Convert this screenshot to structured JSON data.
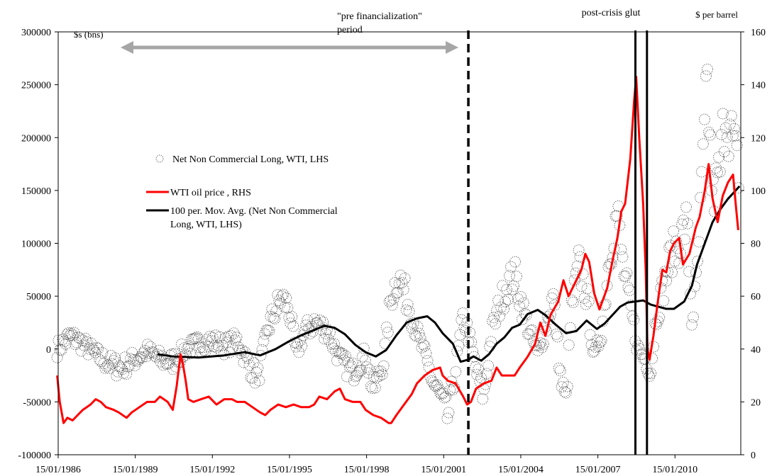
{
  "chart_data": {
    "type": "line",
    "title": "",
    "left_axis": {
      "unit": "$s (bns)",
      "range": [
        -100000,
        300000
      ],
      "ticks": [
        -100000,
        -50000,
        0,
        50000,
        100000,
        150000,
        200000,
        250000,
        300000
      ],
      "tick_labels": [
        "-100000",
        "-50000",
        "0",
        "50000",
        "100000",
        "150000",
        "200000",
        "250000",
        "300000"
      ]
    },
    "right_axis": {
      "unit": "$ per barrel",
      "range": [
        0,
        160
      ],
      "ticks": [
        0,
        20,
        40,
        60,
        80,
        100,
        120,
        140,
        160
      ],
      "tick_labels": [
        "0",
        "20",
        "40",
        "60",
        "80",
        "100",
        "120",
        "140",
        "160"
      ]
    },
    "x_axis": {
      "range": [
        1986.04,
        2012.6
      ],
      "ticks": [
        1986.04,
        1989.04,
        1992.04,
        1995.04,
        1998.04,
        2001.04,
        2004.04,
        2007.04,
        2010.04
      ],
      "tick_labels": [
        "15/01/1986",
        "15/01/1989",
        "15/01/1992",
        "15/01/1995",
        "15/01/1998",
        "15/01/2001",
        "15/01/2004",
        "15/01/2007",
        "15/01/2010"
      ]
    },
    "grid": false,
    "legend": {
      "placement": "upper-left",
      "entries": [
        {
          "key": "scatter",
          "label": "Net Non Commercial Long, WTI, LHS",
          "color": "#555555",
          "style": "dotted-circle"
        },
        {
          "key": "price",
          "label": "WTI oil price , RHS",
          "color": "#ff0000",
          "style": "line"
        },
        {
          "key": "mavg",
          "label_lines": [
            "100 per. Mov. Avg. (Net Non Commercial",
            "Long, WTI, LHS)"
          ],
          "color": "#000000",
          "style": "line"
        }
      ]
    },
    "annotations": {
      "pre_fin_lines": [
        "\"pre financialization\"",
        "period"
      ],
      "pre_fin_range": [
        1988.8,
        2002.0
      ],
      "glut_label": "post-crisis glut",
      "dashed_line_x": 2002.0,
      "glut_lines_x": [
        2008.5,
        2008.95
      ]
    },
    "series": [
      {
        "name": "WTI oil price , RHS",
        "axis": "right",
        "color": "#ff0000",
        "points": [
          [
            1986.0,
            30
          ],
          [
            1986.1,
            20
          ],
          [
            1986.25,
            12
          ],
          [
            1986.4,
            14
          ],
          [
            1986.6,
            13
          ],
          [
            1986.8,
            15
          ],
          [
            1987.0,
            17
          ],
          [
            1987.3,
            19
          ],
          [
            1987.5,
            21
          ],
          [
            1987.7,
            20
          ],
          [
            1987.9,
            18
          ],
          [
            1988.2,
            17
          ],
          [
            1988.4,
            16
          ],
          [
            1988.7,
            14
          ],
          [
            1988.9,
            16
          ],
          [
            1989.2,
            18
          ],
          [
            1989.5,
            20
          ],
          [
            1989.8,
            20
          ],
          [
            1990.0,
            22
          ],
          [
            1990.3,
            20
          ],
          [
            1990.5,
            17
          ],
          [
            1990.65,
            26
          ],
          [
            1990.8,
            38
          ],
          [
            1990.9,
            34
          ],
          [
            1991.0,
            28
          ],
          [
            1991.1,
            21
          ],
          [
            1991.3,
            20
          ],
          [
            1991.6,
            21
          ],
          [
            1991.9,
            22
          ],
          [
            1992.2,
            19
          ],
          [
            1992.5,
            21
          ],
          [
            1992.8,
            21
          ],
          [
            1993.0,
            20
          ],
          [
            1993.3,
            20
          ],
          [
            1993.6,
            18
          ],
          [
            1993.9,
            16
          ],
          [
            1994.1,
            15
          ],
          [
            1994.3,
            17
          ],
          [
            1994.6,
            19
          ],
          [
            1994.9,
            18
          ],
          [
            1995.2,
            19
          ],
          [
            1995.5,
            18
          ],
          [
            1995.8,
            18
          ],
          [
            1996.0,
            19
          ],
          [
            1996.2,
            22
          ],
          [
            1996.5,
            21
          ],
          [
            1996.8,
            24
          ],
          [
            1997.0,
            25
          ],
          [
            1997.2,
            21
          ],
          [
            1997.5,
            20
          ],
          [
            1997.8,
            20
          ],
          [
            1998.0,
            17
          ],
          [
            1998.3,
            15
          ],
          [
            1998.6,
            14
          ],
          [
            1998.9,
            12
          ],
          [
            1999.0,
            12
          ],
          [
            1999.2,
            15
          ],
          [
            1999.5,
            19
          ],
          [
            1999.8,
            23
          ],
          [
            2000.0,
            27
          ],
          [
            2000.3,
            30
          ],
          [
            2000.6,
            32
          ],
          [
            2000.9,
            33
          ],
          [
            2001.0,
            30
          ],
          [
            2001.2,
            28
          ],
          [
            2001.5,
            27
          ],
          [
            2001.8,
            22
          ],
          [
            2001.95,
            19
          ],
          [
            2002.1,
            20
          ],
          [
            2002.3,
            25
          ],
          [
            2002.6,
            27
          ],
          [
            2002.9,
            28
          ],
          [
            2003.1,
            33
          ],
          [
            2003.3,
            30
          ],
          [
            2003.5,
            30
          ],
          [
            2003.8,
            30
          ],
          [
            2004.0,
            33
          ],
          [
            2004.3,
            37
          ],
          [
            2004.6,
            42
          ],
          [
            2004.8,
            50
          ],
          [
            2005.0,
            45
          ],
          [
            2005.2,
            53
          ],
          [
            2005.5,
            58
          ],
          [
            2005.7,
            66
          ],
          [
            2005.9,
            60
          ],
          [
            2006.1,
            64
          ],
          [
            2006.4,
            70
          ],
          [
            2006.55,
            76
          ],
          [
            2006.7,
            73
          ],
          [
            2006.9,
            61
          ],
          [
            2007.1,
            55
          ],
          [
            2007.4,
            63
          ],
          [
            2007.6,
            73
          ],
          [
            2007.8,
            82
          ],
          [
            2007.95,
            92
          ],
          [
            2008.1,
            95
          ],
          [
            2008.3,
            112
          ],
          [
            2008.45,
            134
          ],
          [
            2008.53,
            143
          ],
          [
            2008.65,
            120
          ],
          [
            2008.8,
            95
          ],
          [
            2008.9,
            70
          ],
          [
            2008.97,
            40
          ],
          [
            2009.05,
            36
          ],
          [
            2009.2,
            45
          ],
          [
            2009.4,
            60
          ],
          [
            2009.55,
            70
          ],
          [
            2009.7,
            69
          ],
          [
            2009.85,
            77
          ],
          [
            2010.0,
            80
          ],
          [
            2010.2,
            82
          ],
          [
            2010.35,
            72
          ],
          [
            2010.6,
            76
          ],
          [
            2010.85,
            86
          ],
          [
            2011.0,
            90
          ],
          [
            2011.2,
            100
          ],
          [
            2011.35,
            110
          ],
          [
            2011.5,
            97
          ],
          [
            2011.7,
            88
          ],
          [
            2011.9,
            98
          ],
          [
            2012.1,
            103
          ],
          [
            2012.3,
            106
          ],
          [
            2012.4,
            95
          ],
          [
            2012.5,
            85
          ]
        ]
      },
      {
        "name": "100 per. Mov. Avg. (Net Non Commercial Long, WTI, LHS)",
        "axis": "left",
        "color": "#000000",
        "points": [
          [
            1989.9,
            -5000
          ],
          [
            1990.5,
            -7000
          ],
          [
            1991.5,
            -8000
          ],
          [
            1992.5,
            -6000
          ],
          [
            1993.3,
            -3000
          ],
          [
            1993.9,
            -6000
          ],
          [
            1994.5,
            0
          ],
          [
            1995.0,
            7000
          ],
          [
            1995.5,
            13000
          ],
          [
            1996.0,
            18000
          ],
          [
            1996.4,
            22000
          ],
          [
            1996.8,
            20000
          ],
          [
            1997.2,
            14000
          ],
          [
            1997.6,
            4000
          ],
          [
            1998.0,
            -3000
          ],
          [
            1998.4,
            -7000
          ],
          [
            1998.8,
            -1000
          ],
          [
            1999.2,
            13000
          ],
          [
            1999.6,
            25000
          ],
          [
            2000.0,
            29000
          ],
          [
            2000.4,
            31000
          ],
          [
            2000.7,
            25000
          ],
          [
            2001.0,
            15000
          ],
          [
            2001.4,
            5000
          ],
          [
            2001.7,
            -12000
          ],
          [
            2002.0,
            -10000
          ],
          [
            2002.2,
            -7000
          ],
          [
            2002.5,
            -11000
          ],
          [
            2002.8,
            -5000
          ],
          [
            2003.1,
            5000
          ],
          [
            2003.4,
            11000
          ],
          [
            2003.7,
            20000
          ],
          [
            2004.0,
            23000
          ],
          [
            2004.3,
            33000
          ],
          [
            2004.7,
            37000
          ],
          [
            2005.0,
            32000
          ],
          [
            2005.4,
            23000
          ],
          [
            2005.8,
            15000
          ],
          [
            2006.2,
            17000
          ],
          [
            2006.6,
            27000
          ],
          [
            2007.0,
            19000
          ],
          [
            2007.3,
            24000
          ],
          [
            2007.6,
            32000
          ],
          [
            2007.9,
            40000
          ],
          [
            2008.2,
            44000
          ],
          [
            2008.5,
            45000
          ],
          [
            2008.8,
            46000
          ],
          [
            2009.1,
            42000
          ],
          [
            2009.4,
            40000
          ],
          [
            2009.7,
            38000
          ],
          [
            2010.0,
            38000
          ],
          [
            2010.4,
            45000
          ],
          [
            2010.7,
            60000
          ],
          [
            2010.9,
            80000
          ],
          [
            2011.2,
            100000
          ],
          [
            2011.5,
            120000
          ],
          [
            2011.8,
            132000
          ],
          [
            2012.1,
            142000
          ],
          [
            2012.4,
            150000
          ],
          [
            2012.55,
            154000
          ]
        ]
      },
      {
        "name": "Net Non Commercial Long, WTI, LHS",
        "axis": "left",
        "color": "#555555",
        "anchors": [
          [
            1986.0,
            0
          ],
          [
            1986.5,
            12000
          ],
          [
            1987.0,
            5000
          ],
          [
            1987.5,
            -5000
          ],
          [
            1988.0,
            -14000
          ],
          [
            1988.5,
            -18000
          ],
          [
            1989.0,
            -10000
          ],
          [
            1989.5,
            -2000
          ],
          [
            1990.0,
            -10000
          ],
          [
            1990.5,
            -12000
          ],
          [
            1991.0,
            0
          ],
          [
            1991.5,
            5000
          ],
          [
            1992.0,
            8000
          ],
          [
            1992.5,
            3000
          ],
          [
            1993.0,
            8000
          ],
          [
            1993.4,
            -12000
          ],
          [
            1993.8,
            -28000
          ],
          [
            1994.2,
            20000
          ],
          [
            1994.7,
            48000
          ],
          [
            1995.0,
            40000
          ],
          [
            1995.3,
            -5000
          ],
          [
            1995.6,
            15000
          ],
          [
            1996.0,
            25000
          ],
          [
            1996.5,
            18000
          ],
          [
            1997.0,
            -10000
          ],
          [
            1997.5,
            -22000
          ],
          [
            1998.0,
            -5000
          ],
          [
            1998.3,
            -40000
          ],
          [
            1998.7,
            -12000
          ],
          [
            1999.0,
            50000
          ],
          [
            1999.3,
            70000
          ],
          [
            1999.7,
            40000
          ],
          [
            2000.0,
            15000
          ],
          [
            2000.3,
            -5000
          ],
          [
            2000.6,
            -30000
          ],
          [
            2000.9,
            -45000
          ],
          [
            2001.2,
            -65000
          ],
          [
            2001.5,
            -20000
          ],
          [
            2001.8,
            30000
          ],
          [
            2002.0,
            15000
          ],
          [
            2002.3,
            -20000
          ],
          [
            2002.6,
            -45000
          ],
          [
            2002.9,
            15000
          ],
          [
            2003.2,
            40000
          ],
          [
            2003.5,
            60000
          ],
          [
            2003.8,
            70000
          ],
          [
            2004.1,
            40000
          ],
          [
            2004.4,
            15000
          ],
          [
            2004.7,
            -5000
          ],
          [
            2005.0,
            20000
          ],
          [
            2005.3,
            50000
          ],
          [
            2005.6,
            -30000
          ],
          [
            2005.8,
            -50000
          ],
          [
            2006.0,
            35000
          ],
          [
            2006.3,
            80000
          ],
          [
            2006.6,
            50000
          ],
          [
            2006.9,
            -10000
          ],
          [
            2007.2,
            20000
          ],
          [
            2007.5,
            90000
          ],
          [
            2007.8,
            130000
          ],
          [
            2008.0,
            80000
          ],
          [
            2008.3,
            40000
          ],
          [
            2008.6,
            0
          ],
          [
            2008.9,
            -10000
          ],
          [
            2009.1,
            -20000
          ],
          [
            2009.3,
            30000
          ],
          [
            2009.6,
            60000
          ],
          [
            2009.9,
            90000
          ],
          [
            2010.2,
            100000
          ],
          [
            2010.5,
            120000
          ],
          [
            2010.7,
            25000
          ],
          [
            2010.9,
            70000
          ],
          [
            2011.1,
            160000
          ],
          [
            2011.3,
            250000
          ],
          [
            2011.5,
            140000
          ],
          [
            2011.8,
            170000
          ],
          [
            2012.0,
            230000
          ],
          [
            2012.2,
            205000
          ],
          [
            2012.4,
            180000
          ],
          [
            2012.55,
            165000
          ]
        ]
      }
    ]
  }
}
